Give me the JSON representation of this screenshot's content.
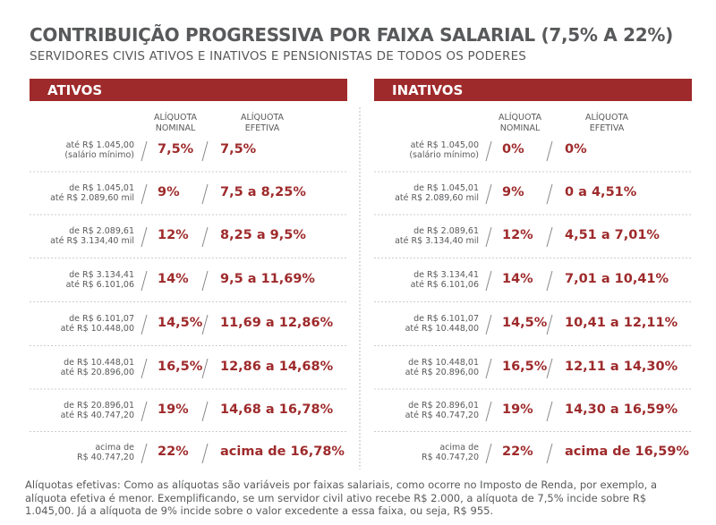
{
  "header": {
    "title": "CONTRIBUIÇÃO PROGRESSIVA POR FAIXA SALARIAL (7,5% A 22%)",
    "subtitle": "SERVIDORES CIVIS ATIVOS E INATIVOS E PENSIONISTAS DE TODOS OS PODERES"
  },
  "panels": [
    {
      "title": "ATIVOS",
      "columns": [
        [
          "ALÍQUOTA",
          "NOMINAL"
        ],
        [
          "ALÍQUOTA",
          "EFETIVA"
        ]
      ],
      "rows": [
        {
          "range": [
            "até R$ 1.045,00",
            "(salário mínimo)"
          ],
          "nominal": "7,5%",
          "effective": "7,5%"
        },
        {
          "range": [
            "de R$ 1.045,01",
            "até R$ 2.089,60 mil"
          ],
          "nominal": "9%",
          "effective": "7,5 a 8,25%"
        },
        {
          "range": [
            "de R$ 2.089,61",
            "até R$ 3.134,40 mil"
          ],
          "nominal": "12%",
          "effective": "8,25 a 9,5%"
        },
        {
          "range": [
            "de R$ 3.134,41",
            "até R$ 6.101,06"
          ],
          "nominal": "14%",
          "effective": "9,5 a 11,69%"
        },
        {
          "range": [
            "de R$ 6.101,07",
            "até R$ 10.448,00"
          ],
          "nominal": "14,5%",
          "effective": "11,69 a 12,86%"
        },
        {
          "range": [
            "de R$ 10.448,01",
            "até R$ 20.896,00"
          ],
          "nominal": "16,5%",
          "effective": "12,86 a 14,68%"
        },
        {
          "range": [
            "de R$ 20.896,01",
            "até R$ 40.747,20"
          ],
          "nominal": "19%",
          "effective": "14,68 a 16,78%"
        },
        {
          "range": [
            "acima de",
            "R$ 40.747,20"
          ],
          "nominal": "22%",
          "effective": "acima de 16,78%"
        }
      ]
    },
    {
      "title": "INATIVOS",
      "columns": [
        [
          "ALÍQUOTA",
          "NOMINAL"
        ],
        [
          "ALÍQUOTA",
          "EFETIVA"
        ]
      ],
      "rows": [
        {
          "range": [
            "até R$ 1.045,00",
            "(salário mínimo)"
          ],
          "nominal": "0%",
          "effective": "0%"
        },
        {
          "range": [
            "de R$ 1.045,01",
            "até R$ 2.089,60 mil"
          ],
          "nominal": "9%",
          "effective": "0 a 4,51%"
        },
        {
          "range": [
            "de R$ 2.089,61",
            "até R$ 3.134,40 mil"
          ],
          "nominal": "12%",
          "effective": "4,51 a 7,01%"
        },
        {
          "range": [
            "de R$ 3.134,41",
            "até R$ 6.101,06"
          ],
          "nominal": "14%",
          "effective": "7,01 a 10,41%"
        },
        {
          "range": [
            "de R$ 6.101,07",
            "até R$ 10.448,00"
          ],
          "nominal": "14,5%",
          "effective": "10,41 a 12,11%"
        },
        {
          "range": [
            "de R$ 10.448,01",
            "até R$ 20.896,00"
          ],
          "nominal": "16,5%",
          "effective": "12,11 a 14,30%"
        },
        {
          "range": [
            "de R$ 20.896,01",
            "até R$ 40.747,20"
          ],
          "nominal": "19%",
          "effective": "14,30 a 16,59%"
        },
        {
          "range": [
            "acima de",
            "R$ 40.747,20"
          ],
          "nominal": "22%",
          "effective": "acima de 16,59%"
        }
      ]
    }
  ],
  "footnote": "Alíquotas efetivas: Como as alíquotas são variáveis por faixas salariais, como ocorre no Imposto de Renda, por exemplo, a alíquota efetiva é menor. Exemplificando, se um servidor civil ativo recebe R$ 2.000, a alíquota de 7,5% incide sobre R$ 1.045,00. Já a alíquota de 9% incide sobre o valor excedente a essa faixa, ou seja, R$ 955."
}
